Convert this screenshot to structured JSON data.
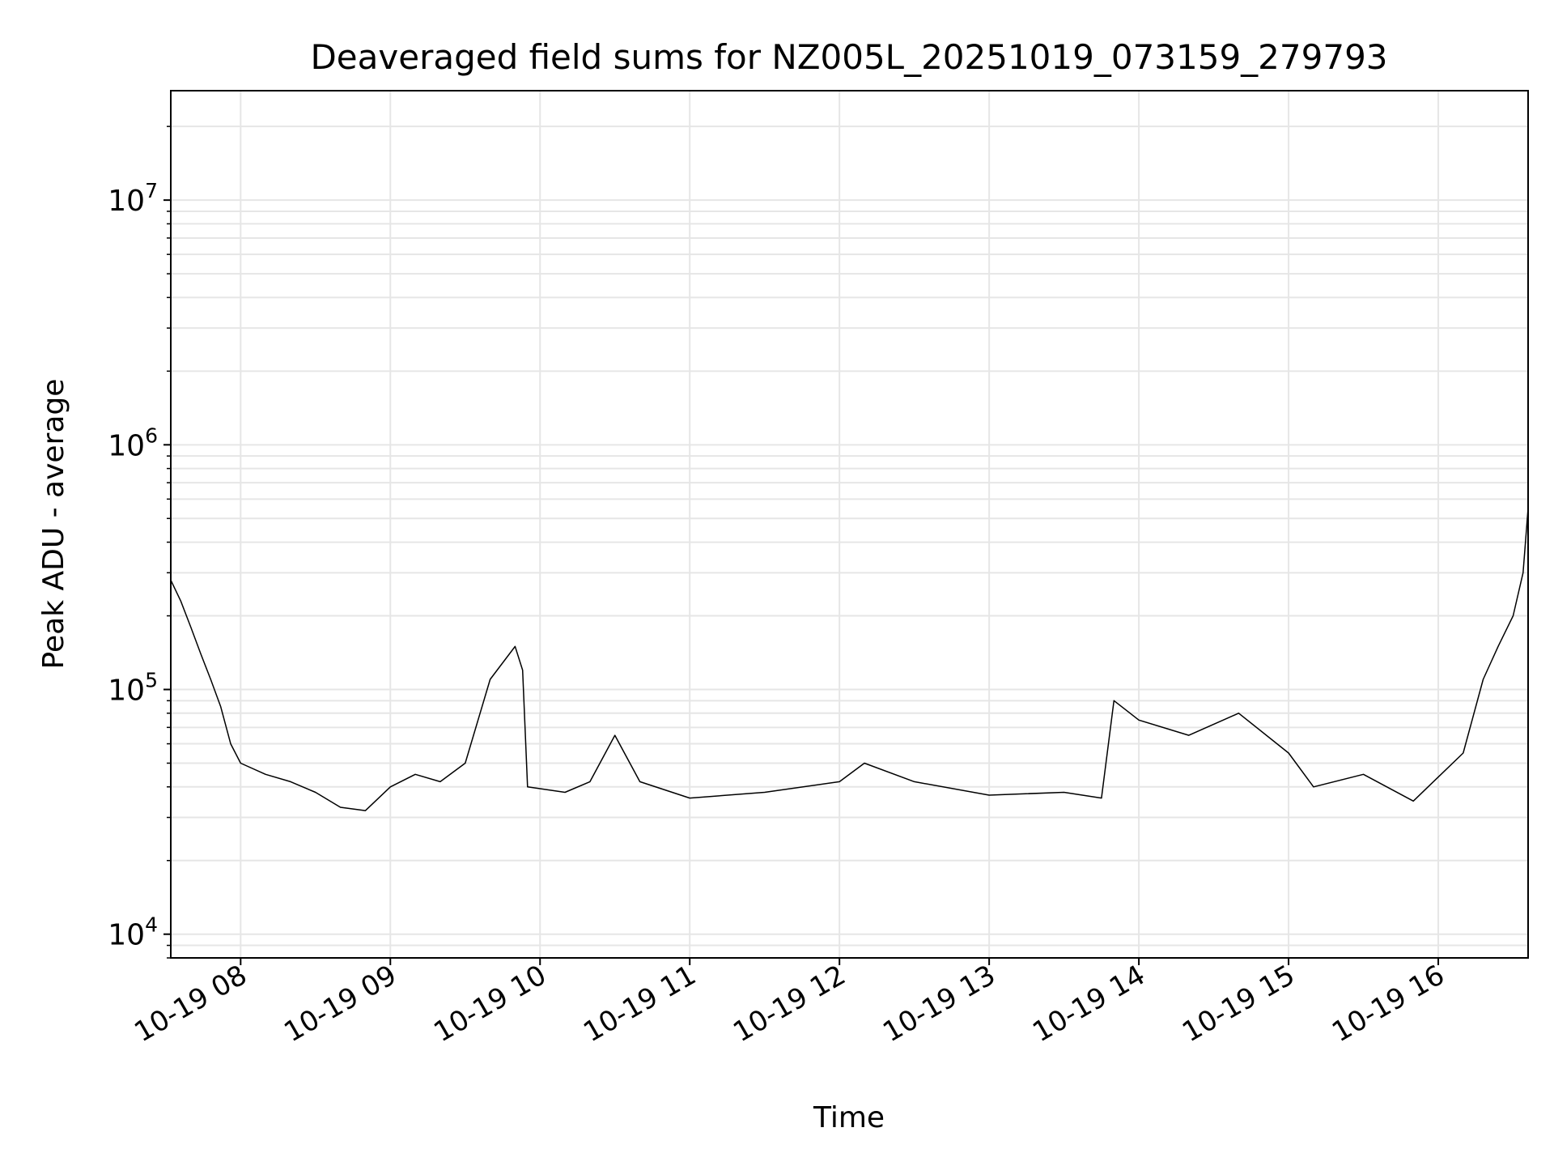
{
  "chart_data": {
    "type": "line",
    "title": "Deaveraged field sums for NZ005L_20251019_073159_279793",
    "xlabel": "Time",
    "ylabel": "Peak ADU - average",
    "y_scale": "log",
    "ylim": [
      8000,
      28000000
    ],
    "xlim": [
      "2025-10-19 07:32",
      "2025-10-19 16:36"
    ],
    "grid": true,
    "legend": "none",
    "x_ticks": [
      {
        "t": "2025-10-19 08:00",
        "label": "10-19 08"
      },
      {
        "t": "2025-10-19 09:00",
        "label": "10-19 09"
      },
      {
        "t": "2025-10-19 10:00",
        "label": "10-19 10"
      },
      {
        "t": "2025-10-19 11:00",
        "label": "10-19 11"
      },
      {
        "t": "2025-10-19 12:00",
        "label": "10-19 12"
      },
      {
        "t": "2025-10-19 13:00",
        "label": "10-19 13"
      },
      {
        "t": "2025-10-19 14:00",
        "label": "10-19 14"
      },
      {
        "t": "2025-10-19 15:00",
        "label": "10-19 15"
      },
      {
        "t": "2025-10-19 16:00",
        "label": "10-19 16"
      }
    ],
    "y_ticks": [
      {
        "value": 10000,
        "base": "10",
        "exp": "4"
      },
      {
        "value": 100000,
        "base": "10",
        "exp": "5"
      },
      {
        "value": 1000000,
        "base": "10",
        "exp": "6"
      },
      {
        "value": 10000000,
        "base": "10",
        "exp": "7"
      }
    ],
    "line_color": "#000000",
    "series": [
      {
        "points": [
          [
            "2025-10-19 07:32",
            280000
          ],
          [
            "2025-10-19 07:36",
            230000
          ],
          [
            "2025-10-19 07:40",
            180000
          ],
          [
            "2025-10-19 07:44",
            140000
          ],
          [
            "2025-10-19 07:48",
            110000
          ],
          [
            "2025-10-19 07:52",
            85000
          ],
          [
            "2025-10-19 07:56",
            60000
          ],
          [
            "2025-10-19 08:00",
            50000
          ],
          [
            "2025-10-19 08:10",
            45000
          ],
          [
            "2025-10-19 08:20",
            42000
          ],
          [
            "2025-10-19 08:30",
            38000
          ],
          [
            "2025-10-19 08:40",
            33000
          ],
          [
            "2025-10-19 08:50",
            32000
          ],
          [
            "2025-10-19 09:00",
            40000
          ],
          [
            "2025-10-19 09:10",
            45000
          ],
          [
            "2025-10-19 09:20",
            42000
          ],
          [
            "2025-10-19 09:30",
            50000
          ],
          [
            "2025-10-19 09:40",
            110000
          ],
          [
            "2025-10-19 09:50",
            150000
          ],
          [
            "2025-10-19 09:53",
            120000
          ],
          [
            "2025-10-19 09:55",
            40000
          ],
          [
            "2025-10-19 10:10",
            38000
          ],
          [
            "2025-10-19 10:20",
            42000
          ],
          [
            "2025-10-19 10:30",
            65000
          ],
          [
            "2025-10-19 10:40",
            42000
          ],
          [
            "2025-10-19 11:00",
            36000
          ],
          [
            "2025-10-19 11:30",
            38000
          ],
          [
            "2025-10-19 12:00",
            42000
          ],
          [
            "2025-10-19 12:10",
            50000
          ],
          [
            "2025-10-19 12:30",
            42000
          ],
          [
            "2025-10-19 13:00",
            37000
          ],
          [
            "2025-10-19 13:30",
            38000
          ],
          [
            "2025-10-19 13:45",
            36000
          ],
          [
            "2025-10-19 13:50",
            90000
          ],
          [
            "2025-10-19 14:00",
            75000
          ],
          [
            "2025-10-19 14:20",
            65000
          ],
          [
            "2025-10-19 14:40",
            80000
          ],
          [
            "2025-10-19 15:00",
            55000
          ],
          [
            "2025-10-19 15:10",
            40000
          ],
          [
            "2025-10-19 15:30",
            45000
          ],
          [
            "2025-10-19 15:50",
            35000
          ],
          [
            "2025-10-19 16:10",
            55000
          ],
          [
            "2025-10-19 16:18",
            110000
          ],
          [
            "2025-10-19 16:24",
            150000
          ],
          [
            "2025-10-19 16:30",
            200000
          ],
          [
            "2025-10-19 16:34",
            300000
          ],
          [
            "2025-10-19 16:36",
            550000
          ]
        ]
      }
    ]
  }
}
